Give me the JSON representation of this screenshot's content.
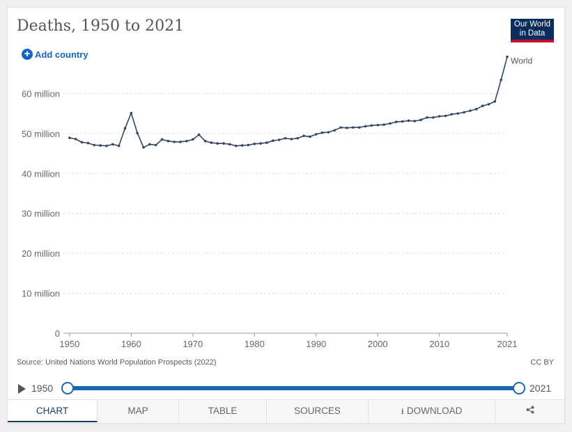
{
  "title": "Deaths, 1950 to 2021",
  "logo": {
    "line1": "Our World",
    "line2": "in Data"
  },
  "add_country_label": "Add country",
  "source": "Source: United Nations World Population Prospects (2022)",
  "license": "CC BY",
  "timeline": {
    "start_year": "1950",
    "end_year": "2021"
  },
  "tabs": [
    {
      "label": "CHART"
    },
    {
      "label": "MAP"
    },
    {
      "label": "TABLE"
    },
    {
      "label": "SOURCES"
    },
    {
      "label": "DOWNLOAD"
    },
    {
      "label": ""
    }
  ],
  "colors": {
    "line": "#33475f",
    "accent": "#1565c0",
    "grid": "#dddddd"
  },
  "chart_data": {
    "type": "line",
    "title": "Deaths, 1950 to 2021",
    "xlabel": "",
    "ylabel": "",
    "xlim": [
      1949,
      2021
    ],
    "ylim": [
      0,
      70000000
    ],
    "yticks": [
      0,
      10000000,
      20000000,
      30000000,
      40000000,
      50000000,
      60000000
    ],
    "ytick_labels": [
      "0",
      "10 million",
      "20 million",
      "30 million",
      "40 million",
      "50 million",
      "60 million"
    ],
    "xticks": [
      1950,
      1960,
      1970,
      1980,
      1990,
      2000,
      2010,
      2021
    ],
    "xtick_labels": [
      "1950",
      "1960",
      "1970",
      "1980",
      "1990",
      "2000",
      "2010",
      "2021"
    ],
    "grid": true,
    "series": [
      {
        "name": "World",
        "x": [
          1950,
          1951,
          1952,
          1953,
          1954,
          1955,
          1956,
          1957,
          1958,
          1959,
          1960,
          1961,
          1962,
          1963,
          1964,
          1965,
          1966,
          1967,
          1968,
          1969,
          1970,
          1971,
          1972,
          1973,
          1974,
          1975,
          1976,
          1977,
          1978,
          1979,
          1980,
          1981,
          1982,
          1983,
          1984,
          1985,
          1986,
          1987,
          1988,
          1989,
          1990,
          1991,
          1992,
          1993,
          1994,
          1995,
          1996,
          1997,
          1998,
          1999,
          2000,
          2001,
          2002,
          2003,
          2004,
          2005,
          2006,
          2007,
          2008,
          2009,
          2010,
          2011,
          2012,
          2013,
          2014,
          2015,
          2016,
          2017,
          2018,
          2019,
          2020,
          2021
        ],
        "values": [
          48900000,
          48600000,
          47800000,
          47600000,
          47100000,
          47000000,
          46900000,
          47300000,
          46900000,
          51300000,
          55100000,
          50100000,
          46500000,
          47300000,
          47100000,
          48500000,
          48100000,
          47900000,
          47900000,
          48100000,
          48500000,
          49700000,
          48100000,
          47700000,
          47500000,
          47500000,
          47300000,
          46900000,
          47000000,
          47100000,
          47400000,
          47500000,
          47700000,
          48200000,
          48400000,
          48800000,
          48600000,
          48800000,
          49400000,
          49200000,
          49800000,
          50200000,
          50300000,
          50800000,
          51500000,
          51400000,
          51500000,
          51500000,
          51800000,
          52000000,
          52100000,
          52200000,
          52500000,
          52900000,
          53000000,
          53200000,
          53100000,
          53400000,
          54000000,
          54000000,
          54300000,
          54400000,
          54800000,
          55000000,
          55300000,
          55700000,
          56100000,
          56900000,
          57300000,
          58000000,
          63400000,
          69200000
        ]
      }
    ]
  }
}
